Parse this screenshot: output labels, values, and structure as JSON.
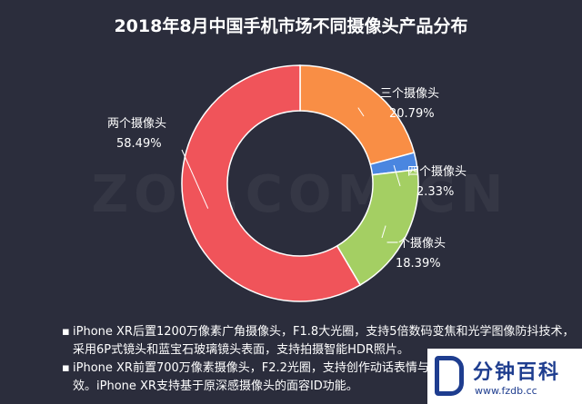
{
  "watermark": "ZOL.COM.CN",
  "chart_data": {
    "type": "pie",
    "title": "2018年8月中国手机市场不同摄像头产品分布",
    "slices": [
      {
        "label": "两个摄像头",
        "value": 58.49,
        "display": "58.49%",
        "color": "#f0545a"
      },
      {
        "label": "三个摄像头",
        "value": 20.79,
        "display": "20.79%",
        "color": "#f98e45"
      },
      {
        "label": "四个摄像头",
        "value": 2.33,
        "display": "2.33%",
        "color": "#4a86e0"
      },
      {
        "label": "一个摄像头",
        "value": 18.39,
        "display": "18.39%",
        "color": "#a4cf63"
      }
    ],
    "donut": true,
    "legend": "none"
  },
  "notes": [
    "iPhone XR后置1200万像素广角摄像头，F1.8大光圈，支持5倍数码变焦和光学图像防抖技术，采用6P式镜头和蓝宝石玻璃镜头表面，支持拍摄智能HDR照片。",
    "iPhone XR前置700万像素摄像头，F2.2光圈，支持创作动话表情与拟我表情，五种自拍人像光效。iPhone XR支持基于原深感摄像头的面容ID功能。"
  ],
  "logo": {
    "brand": "分钟百科",
    "url": "www.fzdb.cc"
  }
}
